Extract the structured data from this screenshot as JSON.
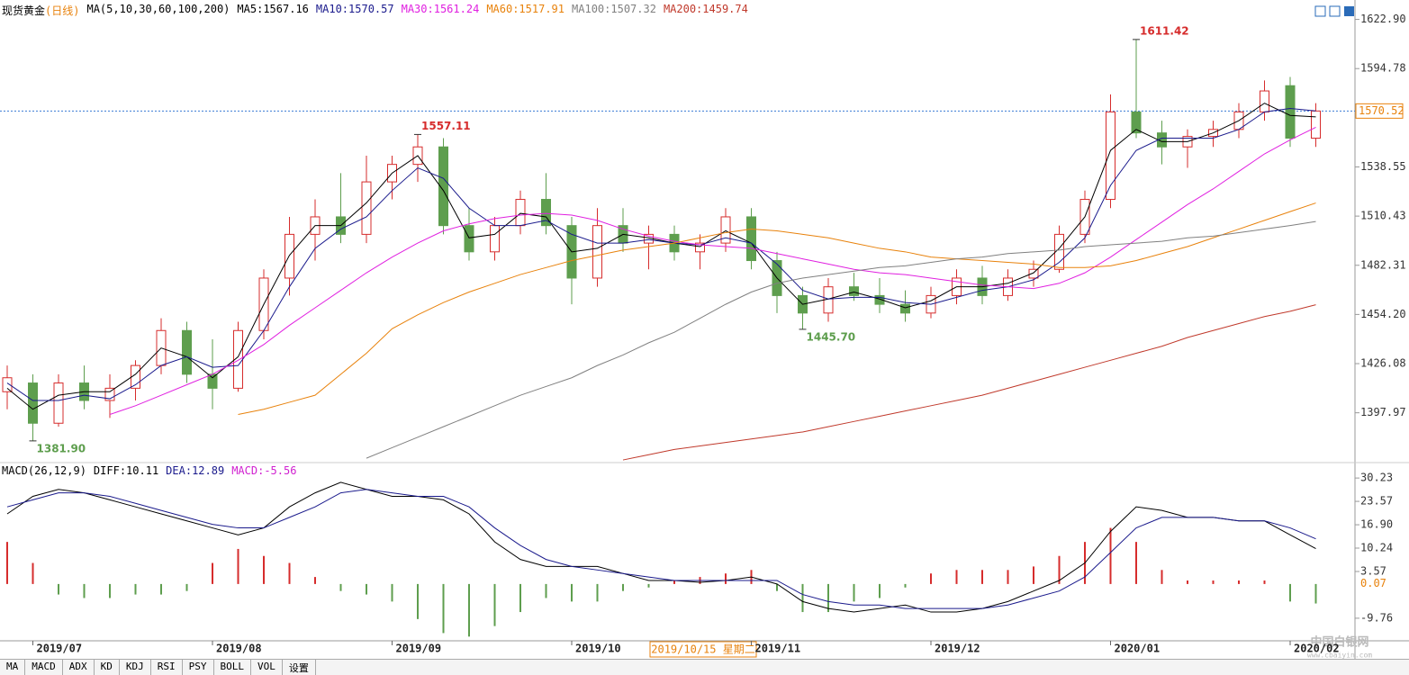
{
  "chart_data": [
    {
      "type": "candlestick",
      "title": "现货黄金",
      "period": "(日线)",
      "indicator": "MA(5,10,30,60,100,200)",
      "categories": [
        null,
        "2019/07",
        null,
        null,
        null,
        null,
        null,
        null,
        "2019/08",
        null,
        null,
        null,
        null,
        null,
        null,
        "2019/09",
        null,
        null,
        null,
        null,
        null,
        null,
        "2019/10",
        null,
        null,
        null,
        null,
        null,
        null,
        "2019/11",
        null,
        null,
        null,
        null,
        null,
        null,
        "2019/12",
        null,
        null,
        null,
        null,
        null,
        null,
        "2020/01",
        null,
        null,
        null,
        null,
        null,
        null,
        "2020/02",
        null
      ],
      "ohlc": [
        [
          1410,
          1425,
          1400,
          1418
        ],
        [
          1415,
          1420,
          1381.9,
          1392
        ],
        [
          1392,
          1420,
          1390,
          1415
        ],
        [
          1415,
          1425,
          1400,
          1405
        ],
        [
          1405,
          1420,
          1395,
          1412
        ],
        [
          1412,
          1428,
          1405,
          1425
        ],
        [
          1425,
          1452,
          1420,
          1445
        ],
        [
          1445,
          1450,
          1415,
          1420
        ],
        [
          1420,
          1440,
          1400,
          1412
        ],
        [
          1412,
          1450,
          1410,
          1445
        ],
        [
          1445,
          1480,
          1440,
          1475
        ],
        [
          1475,
          1510,
          1465,
          1500
        ],
        [
          1500,
          1520,
          1485,
          1510
        ],
        [
          1510,
          1535,
          1495,
          1500
        ],
        [
          1500,
          1545,
          1495,
          1530
        ],
        [
          1530,
          1545,
          1520,
          1540
        ],
        [
          1540,
          1557.11,
          1530,
          1550
        ],
        [
          1550,
          1555,
          1500,
          1505
        ],
        [
          1505,
          1515,
          1485,
          1490
        ],
        [
          1490,
          1510,
          1485,
          1505
        ],
        [
          1505,
          1525,
          1500,
          1520
        ],
        [
          1520,
          1535,
          1500,
          1505
        ],
        [
          1505,
          1510,
          1460,
          1475
        ],
        [
          1475,
          1515,
          1470,
          1505
        ],
        [
          1505,
          1515,
          1490,
          1495
        ],
        [
          1495,
          1505,
          1480,
          1500
        ],
        [
          1500,
          1505,
          1485,
          1490
        ],
        [
          1490,
          1500,
          1480,
          1495
        ],
        [
          1495,
          1515,
          1490,
          1510
        ],
        [
          1510,
          1515,
          1480,
          1485
        ],
        [
          1485,
          1490,
          1455,
          1465
        ],
        [
          1465,
          1470,
          1445.7,
          1455
        ],
        [
          1455,
          1475,
          1450,
          1470
        ],
        [
          1470,
          1478,
          1462,
          1465
        ],
        [
          1465,
          1475,
          1455,
          1460
        ],
        [
          1460,
          1468,
          1450,
          1455
        ],
        [
          1455,
          1470,
          1452,
          1465
        ],
        [
          1465,
          1480,
          1460,
          1475
        ],
        [
          1475,
          1482,
          1460,
          1465
        ],
        [
          1465,
          1480,
          1462,
          1475
        ],
        [
          1475,
          1485,
          1470,
          1480
        ],
        [
          1480,
          1505,
          1478,
          1500
        ],
        [
          1500,
          1525,
          1495,
          1520
        ],
        [
          1520,
          1580,
          1515,
          1570
        ],
        [
          1570,
          1611.42,
          1555,
          1558
        ],
        [
          1558,
          1565,
          1540,
          1550
        ],
        [
          1550,
          1560,
          1538,
          1556
        ],
        [
          1556,
          1565,
          1550,
          1560
        ],
        [
          1560,
          1575,
          1555,
          1570
        ],
        [
          1570,
          1588,
          1565,
          1582
        ],
        [
          1585,
          1590,
          1550,
          1555
        ],
        [
          1555,
          1575,
          1550,
          1570.52
        ]
      ],
      "up_color": "#d62c2c",
      "down_color": "#5e9e4e",
      "series": [
        {
          "name": "MA5:1567.16",
          "color": "#000000",
          "values": [
            1412,
            1400,
            1408,
            1410,
            1410,
            1420,
            1435,
            1430,
            1418,
            1430,
            1460,
            1488,
            1505,
            1505,
            1518,
            1535,
            1545,
            1525,
            1498,
            1500,
            1512,
            1510,
            1490,
            1492,
            1500,
            1498,
            1495,
            1493,
            1502,
            1495,
            1475,
            1460,
            1463,
            1467,
            1463,
            1458,
            1462,
            1470,
            1470,
            1472,
            1478,
            1492,
            1510,
            1548,
            1560,
            1553,
            1553,
            1558,
            1565,
            1575,
            1568,
            1567.16
          ]
        },
        {
          "name": "MA10:1570.57",
          "color": "#1a1a8c",
          "values": [
            1415,
            1405,
            1405,
            1408,
            1406,
            1414,
            1425,
            1430,
            1424,
            1425,
            1445,
            1470,
            1492,
            1503,
            1510,
            1525,
            1538,
            1532,
            1515,
            1505,
            1505,
            1508,
            1500,
            1495,
            1495,
            1497,
            1495,
            1494,
            1498,
            1495,
            1483,
            1468,
            1463,
            1464,
            1464,
            1461,
            1460,
            1464,
            1468,
            1470,
            1474,
            1484,
            1498,
            1528,
            1548,
            1555,
            1555,
            1555,
            1560,
            1570,
            1572,
            1570.57
          ]
        },
        {
          "name": "MA30:1561.24",
          "color": "#e020e0",
          "values": [
            null,
            null,
            null,
            null,
            1397,
            1402,
            1408,
            1414,
            1420,
            1428,
            1437,
            1448,
            1458,
            1468,
            1478,
            1487,
            1495,
            1502,
            1506,
            1509,
            1511,
            1512,
            1511,
            1508,
            1503,
            1499,
            1496,
            1494,
            1493,
            1492,
            1489,
            1486,
            1483,
            1480,
            1478,
            1477,
            1475,
            1473,
            1471,
            1470,
            1469,
            1472,
            1478,
            1487,
            1497,
            1507,
            1517,
            1526,
            1536,
            1546,
            1554,
            1561.24
          ]
        },
        {
          "name": "MA60:1517.91",
          "color": "#e8820c",
          "values": [
            null,
            null,
            null,
            null,
            null,
            null,
            null,
            null,
            null,
            1397,
            1400,
            1404,
            1408,
            1420,
            1432,
            1446,
            1454,
            1461,
            1467,
            1472,
            1477,
            1481,
            1485,
            1488,
            1491,
            1493,
            1495,
            1498,
            1501,
            1503,
            1502,
            1500,
            1498,
            1495,
            1492,
            1490,
            1487,
            1486,
            1485,
            1484,
            1483,
            1481,
            1481,
            1482,
            1485,
            1489,
            1493,
            1498,
            1503,
            1508,
            1513,
            1517.91
          ]
        },
        {
          "name": "MA100:1507.32",
          "color": "#808080",
          "values": [
            null,
            null,
            null,
            null,
            null,
            null,
            null,
            null,
            null,
            null,
            null,
            null,
            null,
            null,
            1372,
            1378,
            1384,
            1390,
            1396,
            1402,
            1408,
            1413,
            1418,
            1425,
            1431,
            1438,
            1444,
            1452,
            1460,
            1467,
            1472,
            1475,
            1477,
            1479,
            1481,
            1482,
            1484,
            1486,
            1487,
            1489,
            1490,
            1491,
            1493,
            1494,
            1495,
            1496,
            1498,
            1499,
            1501,
            1503,
            1505,
            1507.32
          ]
        },
        {
          "name": "MA200:1459.74",
          "color": "#c0392b",
          "values": [
            null,
            null,
            null,
            null,
            null,
            null,
            null,
            null,
            null,
            null,
            null,
            null,
            null,
            null,
            null,
            null,
            null,
            null,
            null,
            null,
            null,
            null,
            null,
            null,
            1371,
            1374,
            1377,
            1379,
            1381,
            1383,
            1385,
            1387,
            1390,
            1393,
            1396,
            1399,
            1402,
            1405,
            1408,
            1412,
            1416,
            1420,
            1424,
            1428,
            1432,
            1436,
            1441,
            1445,
            1449,
            1453,
            1456,
            1459.74
          ]
        }
      ],
      "ylim": [
        1370,
        1634
      ],
      "yticks": [
        {
          "value": 1622.9,
          "label": "1622.90"
        },
        1594.78,
        1538.55,
        1510.43,
        1482.31,
        {
          "value": 1454.2,
          "label": "1454.20"
        },
        1426.08,
        1397.97
      ],
      "last_price": 1570.52,
      "annotations": [
        1611.42,
        1557.11,
        {
          "value": 1445.7,
          "label": "1445.70"
        },
        {
          "value": 1381.9,
          "label": "1381.90"
        }
      ]
    },
    {
      "type": "macd",
      "title": "MACD(26,12,9)",
      "series": [
        {
          "name": "DIFF:10.11",
          "color": "#000000",
          "values": [
            20,
            25,
            27,
            26,
            24,
            22,
            20,
            18,
            16,
            14,
            16,
            22,
            26,
            29,
            27,
            25,
            25,
            24,
            20,
            12,
            7,
            5,
            5,
            5,
            3,
            1,
            1,
            0.5,
            1,
            2,
            0,
            -5,
            -7,
            -8,
            -7,
            -6,
            -8,
            -8,
            -7,
            -5,
            -2,
            1,
            6,
            15,
            22,
            21,
            19,
            19,
            18,
            18,
            14,
            10.11
          ]
        },
        {
          "name": "DEA:12.89",
          "color": "#1a1a8c",
          "values": [
            22,
            24,
            26,
            26,
            25,
            23,
            21,
            19,
            17,
            16,
            16,
            19,
            22,
            26,
            27,
            26,
            25,
            25,
            22,
            16,
            11,
            7,
            5,
            4,
            3,
            2,
            1,
            1,
            1,
            1,
            1,
            -3,
            -5,
            -6,
            -6,
            -7,
            -7,
            -7,
            -7,
            -6,
            -4,
            -2,
            2,
            9,
            16,
            19,
            19,
            19,
            18,
            18,
            16,
            12.89
          ]
        },
        {
          "name": "MACD:-5.56",
          "color": "#d020d0",
          "bars": true,
          "values": [
            12,
            6,
            -3,
            -4,
            -4,
            -3,
            -3,
            -2,
            6,
            10,
            8,
            6,
            2,
            -2,
            -3,
            -5,
            -10,
            -14,
            -15,
            -12,
            -8,
            -4,
            -5,
            -5,
            -2,
            -1,
            1,
            2,
            3,
            4,
            -2,
            -8,
            -8,
            -5,
            -4,
            -1,
            3,
            4,
            4,
            4,
            5,
            8,
            12,
            16,
            12,
            4,
            1,
            1,
            1,
            1,
            -5,
            -5.56
          ]
        }
      ],
      "pos_color": "#d62c2c",
      "neg_color": "#5e9e4e",
      "ylim": [
        -16.2,
        33.6
      ],
      "yticks": [
        30.23,
        23.57,
        {
          "value": 16.9,
          "label": "16.90"
        },
        10.24,
        3.57,
        -9.76
      ],
      "marker_value": 0.07
    }
  ],
  "cursor_label": "2019/10/15 星期二",
  "tabs": [
    "MA",
    "MACD",
    "ADX",
    "KD",
    "KDJ",
    "RSI",
    "PSY",
    "BOLL",
    "VOL",
    "设置"
  ],
  "watermark": "中国白银网",
  "watermark_url": "www.cbaiyin.com"
}
